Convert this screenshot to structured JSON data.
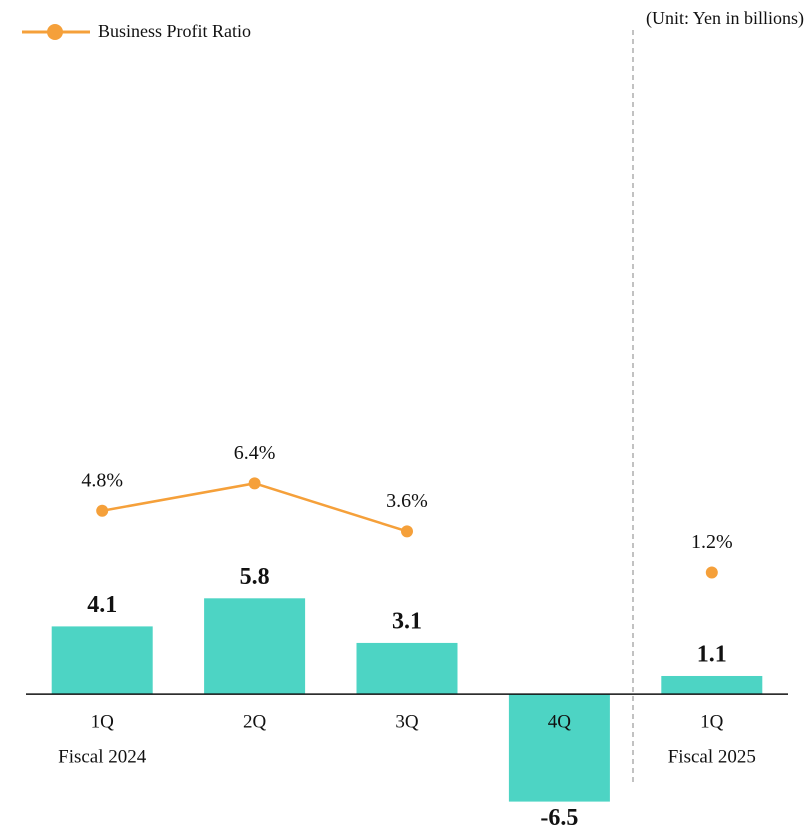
{
  "chart_data": {
    "type": "bar",
    "unit_note": "(Unit: Yen in billions)",
    "categories": [
      "1Q",
      "2Q",
      "3Q",
      "4Q",
      "1Q"
    ],
    "groups": [
      "Fiscal 2024",
      "Fiscal 2025"
    ],
    "ylim": [
      -8.4,
      42
    ],
    "y2lim": [
      -14,
      34.6
    ],
    "legend": "top-left",
    "series": [
      {
        "type": "bar",
        "color": "#4dd4c4",
        "values": [
          4.1,
          5.8,
          3.1,
          -6.5,
          1.1
        ]
      },
      {
        "name": "Business Profit Ratio",
        "type": "line",
        "axis": "y2",
        "color": "#f5a03a",
        "values": [
          4.8,
          6.4,
          3.6,
          null,
          1.2
        ],
        "value_labels": [
          "4.8%",
          "6.4%",
          "3.6%",
          null,
          "1.2%"
        ]
      }
    ]
  }
}
